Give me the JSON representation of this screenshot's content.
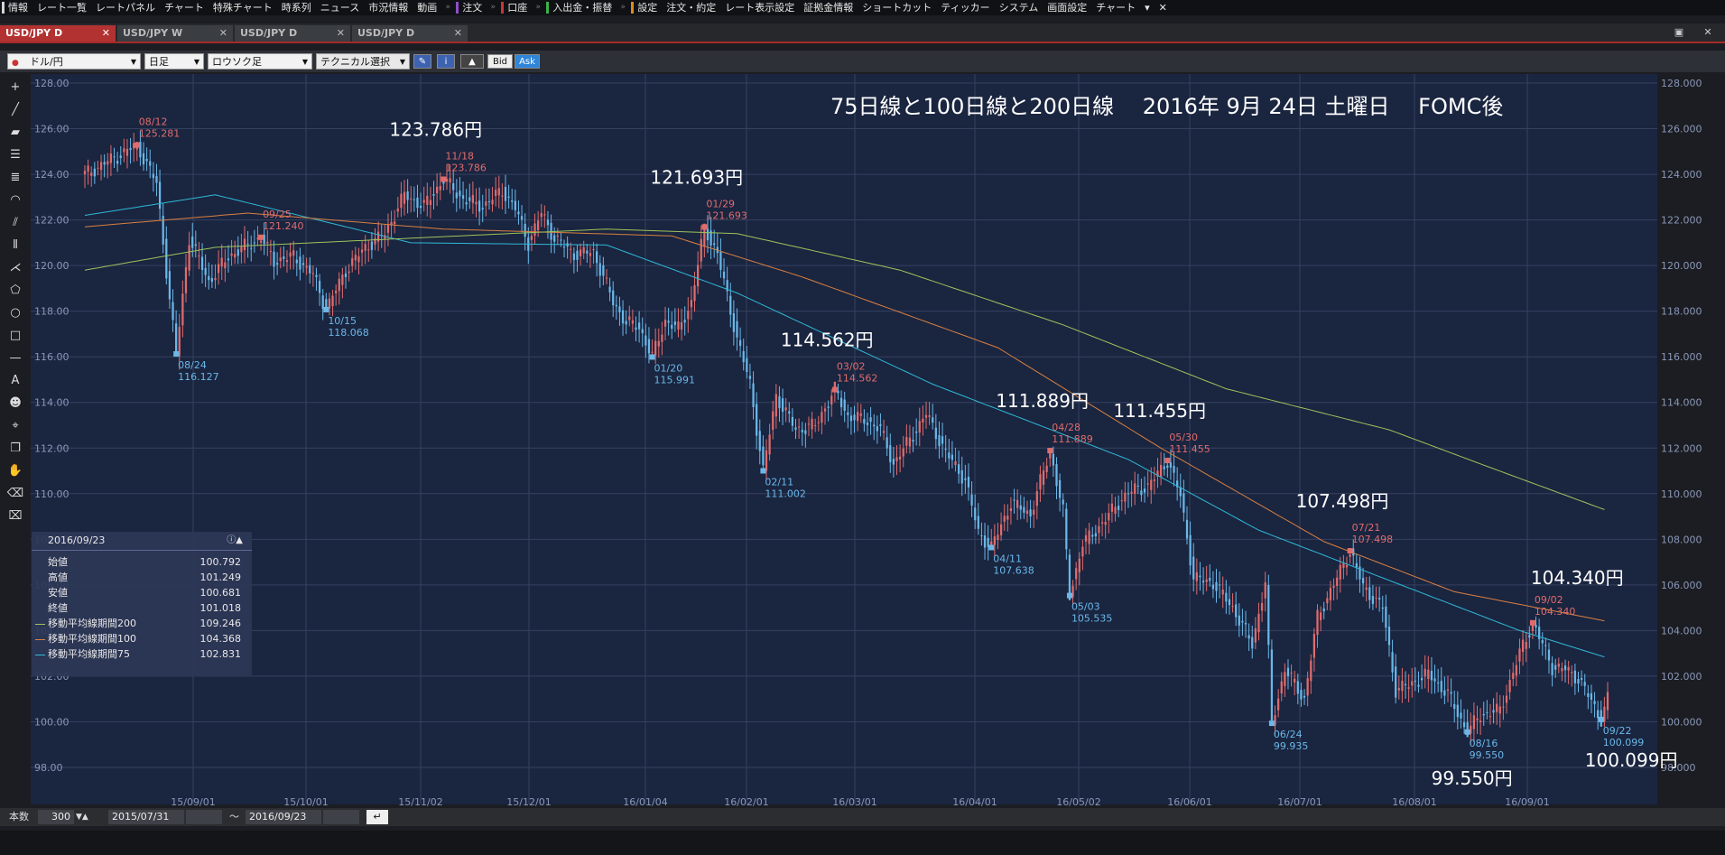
{
  "menu": {
    "items": [
      {
        "label": "情報",
        "mark": "white"
      },
      {
        "label": "レート一覧"
      },
      {
        "label": "レートパネル"
      },
      {
        "label": "チャート"
      },
      {
        "label": "特殊チャート"
      },
      {
        "label": "時系列"
      },
      {
        "label": "ニュース"
      },
      {
        "label": "市況情報"
      },
      {
        "label": "動画",
        "sep": true
      },
      {
        "label": "注文",
        "mark": "purple",
        "sep": true
      },
      {
        "label": "口座",
        "mark": "red",
        "sep": true
      },
      {
        "label": "入出金・振替",
        "mark": "green",
        "sep": true
      },
      {
        "label": "設定",
        "mark": "orange"
      },
      {
        "label": "注文・約定"
      },
      {
        "label": "レート表示設定"
      },
      {
        "label": "証拠金情報"
      },
      {
        "label": "ショートカット"
      },
      {
        "label": "ティッカー"
      },
      {
        "label": "システム"
      },
      {
        "label": "画面設定"
      },
      {
        "label": "チャート"
      }
    ],
    "more_icon": "▾",
    "close_icon": "✕"
  },
  "tabs": [
    {
      "label": "USD/JPY D",
      "active": true
    },
    {
      "label": "USD/JPY W",
      "active": false
    },
    {
      "label": "USD/JPY D",
      "active": false
    },
    {
      "label": "USD/JPY D",
      "active": false
    }
  ],
  "toolbar": {
    "pair": "ドル/円",
    "period": "日足",
    "chart_type": "ロウソク足",
    "technical": "テクニカル選択",
    "bid": "Bid",
    "ask": "Ask"
  },
  "chart": {
    "title": "75日線と100日線と200日線　 2016年 9月 24日 土曜日　 FOMC後",
    "colors": {
      "bg": "#1a2540",
      "up": "#e06c6c",
      "down": "#6ab8e8",
      "ma75": "#2fb9d6",
      "ma100": "#d98040",
      "ma200": "#9cc45a",
      "grid": "#35415f"
    }
  },
  "chart_data": {
    "type": "candlestick",
    "symbol": "USD/JPY",
    "timeframe": "daily",
    "y_ticks": [
      "128.00",
      "126.00",
      "124.00",
      "122.00",
      "120.00",
      "118.00",
      "116.00",
      "114.00",
      "112.00",
      "110.00",
      "108.00",
      "106.00",
      "104.00",
      "102.00",
      "100.00",
      "98.00"
    ],
    "right_ticks": [
      "128.000",
      "126.000",
      "124.000",
      "122.000",
      "120.000",
      "118.000",
      "116.000",
      "114.000",
      "112.000",
      "110.000",
      "108.000",
      "106.000",
      "104.000",
      "102.000",
      "100.000",
      "98.000"
    ],
    "ylim": [
      97,
      128.5
    ],
    "x_ticks": [
      "15/09/01",
      "15/10/01",
      "15/11/02",
      "15/12/01",
      "16/01/04",
      "16/02/01",
      "16/03/01",
      "16/04/01",
      "16/05/02",
      "16/06/01",
      "16/07/01",
      "16/08/01",
      "16/09/01"
    ],
    "price_path": [
      [
        0,
        124.0
      ],
      [
        10,
        124.8
      ],
      [
        16,
        125.28
      ],
      [
        22,
        123.6
      ],
      [
        26,
        118.5
      ],
      [
        28,
        116.13
      ],
      [
        32,
        121.2
      ],
      [
        38,
        119.3
      ],
      [
        44,
        120.4
      ],
      [
        50,
        120.9
      ],
      [
        54,
        121.24
      ],
      [
        58,
        120.2
      ],
      [
        64,
        120.4
      ],
      [
        70,
        119.6
      ],
      [
        74,
        118.07
      ],
      [
        80,
        119.8
      ],
      [
        86,
        120.8
      ],
      [
        92,
        121.4
      ],
      [
        98,
        123.1
      ],
      [
        104,
        122.6
      ],
      [
        110,
        123.79
      ],
      [
        116,
        122.9
      ],
      [
        122,
        122.6
      ],
      [
        128,
        123.3
      ],
      [
        132,
        122.5
      ],
      [
        136,
        121.0
      ],
      [
        140,
        122.3
      ],
      [
        144,
        121.2
      ],
      [
        150,
        120.5
      ],
      [
        156,
        120.6
      ],
      [
        162,
        118.4
      ],
      [
        166,
        117.5
      ],
      [
        170,
        117.3
      ],
      [
        174,
        115.99
      ],
      [
        178,
        117.6
      ],
      [
        182,
        117.2
      ],
      [
        186,
        118.4
      ],
      [
        190,
        121.69
      ],
      [
        194,
        120.5
      ],
      [
        200,
        116.8
      ],
      [
        204,
        114.8
      ],
      [
        208,
        111.0
      ],
      [
        212,
        114.3
      ],
      [
        218,
        112.8
      ],
      [
        224,
        113.0
      ],
      [
        230,
        114.56
      ],
      [
        234,
        113.4
      ],
      [
        240,
        113.2
      ],
      [
        244,
        112.8
      ],
      [
        248,
        111.3
      ],
      [
        254,
        112.6
      ],
      [
        258,
        113.5
      ],
      [
        264,
        111.8
      ],
      [
        270,
        110.6
      ],
      [
        274,
        108.3
      ],
      [
        278,
        107.64
      ],
      [
        284,
        109.6
      ],
      [
        290,
        109.1
      ],
      [
        296,
        111.89
      ],
      [
        300,
        109.2
      ],
      [
        302,
        105.54
      ],
      [
        306,
        107.8
      ],
      [
        312,
        108.7
      ],
      [
        318,
        109.8
      ],
      [
        322,
        110.2
      ],
      [
        326,
        110.3
      ],
      [
        332,
        111.46
      ],
      [
        336,
        109.9
      ],
      [
        340,
        106.3
      ],
      [
        346,
        106.1
      ],
      [
        352,
        105.0
      ],
      [
        358,
        103.4
      ],
      [
        362,
        106.1
      ],
      [
        364,
        99.94
      ],
      [
        368,
        102.3
      ],
      [
        374,
        101.0
      ],
      [
        378,
        104.6
      ],
      [
        384,
        106.3
      ],
      [
        388,
        107.5
      ],
      [
        392,
        105.9
      ],
      [
        398,
        105.0
      ],
      [
        402,
        101.4
      ],
      [
        406,
        101.6
      ],
      [
        412,
        102.1
      ],
      [
        418,
        101.2
      ],
      [
        424,
        99.55
      ],
      [
        428,
        100.3
      ],
      [
        434,
        100.5
      ],
      [
        440,
        103.0
      ],
      [
        444,
        104.34
      ],
      [
        450,
        102.4
      ],
      [
        454,
        102.3
      ],
      [
        458,
        101.9
      ],
      [
        462,
        100.9
      ],
      [
        465,
        100.1
      ],
      [
        467,
        101.02
      ]
    ],
    "annotations": [
      {
        "i": 16,
        "date": "08/12",
        "price": "125.281",
        "kind": "high"
      },
      {
        "i": 28,
        "date": "08/24",
        "price": "116.127",
        "kind": "low"
      },
      {
        "i": 54,
        "date": "09/25",
        "price": "121.240",
        "kind": "high"
      },
      {
        "i": 74,
        "date": "10/15",
        "price": "118.068",
        "kind": "low"
      },
      {
        "i": 110,
        "date": "11/18",
        "price": "123.786",
        "kind": "high",
        "big": "123.786円"
      },
      {
        "i": 174,
        "date": "01/20",
        "price": "115.991",
        "kind": "low"
      },
      {
        "i": 190,
        "date": "01/29",
        "price": "121.693",
        "kind": "high",
        "big": "121.693円"
      },
      {
        "i": 208,
        "date": "02/11",
        "price": "111.002",
        "kind": "low"
      },
      {
        "i": 230,
        "date": "03/02",
        "price": "114.562",
        "kind": "high",
        "big": "114.562円"
      },
      {
        "i": 278,
        "date": "04/11",
        "price": "107.638",
        "kind": "low"
      },
      {
        "i": 296,
        "date": "04/28",
        "price": "111.889",
        "kind": "high",
        "big": "111.889円"
      },
      {
        "i": 302,
        "date": "05/03",
        "price": "105.535",
        "kind": "low"
      },
      {
        "i": 332,
        "date": "05/30",
        "price": "111.455",
        "kind": "high",
        "big": "111.455円"
      },
      {
        "i": 364,
        "date": "06/24",
        "price": "99.935",
        "kind": "low"
      },
      {
        "i": 388,
        "date": "07/21",
        "price": "107.498",
        "kind": "high",
        "big": "107.498円"
      },
      {
        "i": 424,
        "date": "08/16",
        "price": "99.550",
        "kind": "low",
        "big": "99.550円"
      },
      {
        "i": 444,
        "date": "09/02",
        "price": "104.340",
        "kind": "high",
        "big": "104.340円"
      },
      {
        "i": 465,
        "date": "09/22",
        "price": "100.099",
        "kind": "low",
        "big": "100.099円"
      }
    ],
    "series": [
      {
        "name": "移動平均線期間75",
        "key": "ma75",
        "values": [
          [
            0,
            122.2
          ],
          [
            40,
            123.1
          ],
          [
            100,
            121.0
          ],
          [
            160,
            120.9
          ],
          [
            200,
            118.8
          ],
          [
            260,
            114.8
          ],
          [
            320,
            111.5
          ],
          [
            360,
            108.4
          ],
          [
            400,
            106.2
          ],
          [
            440,
            104.0
          ],
          [
            467,
            102.8
          ]
        ]
      },
      {
        "name": "移動平均線期間100",
        "key": "ma100",
        "values": [
          [
            0,
            121.7
          ],
          [
            50,
            122.3
          ],
          [
            110,
            121.6
          ],
          [
            180,
            121.3
          ],
          [
            220,
            119.5
          ],
          [
            280,
            116.4
          ],
          [
            330,
            112.0
          ],
          [
            380,
            107.9
          ],
          [
            420,
            105.7
          ],
          [
            467,
            104.4
          ]
        ]
      },
      {
        "name": "移動平均線期間200",
        "key": "ma200",
        "values": [
          [
            0,
            119.8
          ],
          [
            40,
            120.8
          ],
          [
            100,
            121.2
          ],
          [
            160,
            121.6
          ],
          [
            200,
            121.4
          ],
          [
            250,
            119.8
          ],
          [
            300,
            117.4
          ],
          [
            350,
            114.6
          ],
          [
            400,
            112.8
          ],
          [
            430,
            111.2
          ],
          [
            467,
            109.25
          ]
        ]
      }
    ]
  },
  "info_panel": {
    "date": "2016/09/23",
    "rows": [
      {
        "label": "始値",
        "value": "100.792"
      },
      {
        "label": "高値",
        "value": "101.249"
      },
      {
        "label": "安値",
        "value": "100.681"
      },
      {
        "label": "終値",
        "value": "101.018"
      },
      {
        "label": "移動平均線期間200",
        "value": "109.246",
        "color": "#9cc45a"
      },
      {
        "label": "移動平均線期間100",
        "value": "104.368",
        "color": "#d98040"
      },
      {
        "label": "移動平均線期間75",
        "value": "102.831",
        "color": "#2fb9d6"
      }
    ]
  },
  "bottom": {
    "count_label": "本数",
    "count_value": "300",
    "from_date": "2015/07/31",
    "tilde": "〜",
    "to_date": "2016/09/23"
  }
}
